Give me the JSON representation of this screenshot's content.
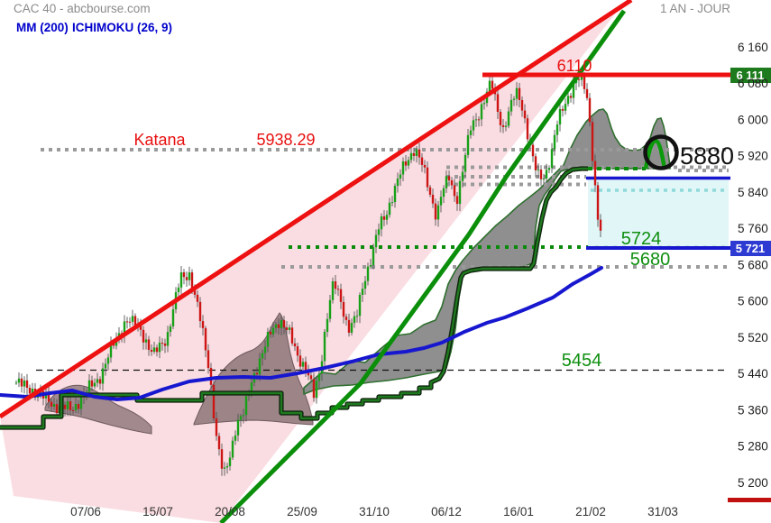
{
  "header": {
    "title": "CAC 40 - abcbourse.com",
    "timeframe": "1 AN - JOUR",
    "indicators": [
      {
        "label": "MM (200)"
      },
      {
        "label": "ICHIMOKU (26, 9)"
      }
    ]
  },
  "axis": {
    "y_ticks": [
      "6 160",
      "6 080",
      "6 000",
      "5 920",
      "5 840",
      "5 760",
      "5 680",
      "5 600",
      "5 520",
      "5 440",
      "5 360",
      "5 280",
      "5 200"
    ],
    "x_ticks": [
      "07/06",
      "15/07",
      "20/08",
      "25/09",
      "31/10",
      "06/12",
      "16/01",
      "21/02",
      "31/03"
    ]
  },
  "annotations": {
    "resistance_label": "6110",
    "resistance_badge": "6 111",
    "katana_name": "Katana",
    "katana_value": "5938.29",
    "circle_level": "5880",
    "level_5724": "5724",
    "level_5680": "5680",
    "level_5454": "5454",
    "support_badge": "5 721"
  },
  "colors": {
    "red": "#e81010",
    "green": "#0a8a0a",
    "blue": "#1717cf",
    "cloud_gray": "#8f8f8f",
    "cloud_brown": "#a1898d",
    "channel_pink": "#fadde2",
    "cyan_box": "#dcf5f6",
    "badge_green": "#1d7a1d",
    "badge_blue": "#2e3bd3",
    "candle_up": "#18a018",
    "candle_down": "#cc1515"
  },
  "chart_data": {
    "type": "candlestick",
    "symbol": "CAC 40",
    "timeframe": "1 year, daily",
    "overlays": [
      "MM (200)",
      "ICHIMOKU (26, 9)"
    ],
    "ylim": [
      5160,
      6200
    ],
    "y_tick_values": [
      6160,
      6080,
      6000,
      5920,
      5840,
      5760,
      5680,
      5600,
      5520,
      5440,
      5360,
      5280,
      5200
    ],
    "x_tick_dates": [
      "07/06",
      "15/07",
      "20/08",
      "25/09",
      "31/10",
      "06/12",
      "16/01",
      "21/02",
      "31/03"
    ],
    "key_levels": [
      {
        "value": 6110,
        "label": "6110",
        "style": "solid-red-thick",
        "role": "resistance"
      },
      {
        "value": 5938.29,
        "label": "Katana 5938.29",
        "style": "dotted-gray",
        "role": "katana-line"
      },
      {
        "value": 5900,
        "style": "dotted-gray"
      },
      {
        "value": 5874,
        "style": "dotted-gray"
      },
      {
        "value": 5858,
        "style": "dotted-gray"
      },
      {
        "value": 5880,
        "label": "5880",
        "style": "solid-blue",
        "role": "broken-support-top-of-zone"
      },
      {
        "value": 5724,
        "label": "5724",
        "style": "dotted-green"
      },
      {
        "value": 5721,
        "label": "5 721",
        "style": "solid-blue",
        "role": "last-price-support"
      },
      {
        "value": 5680,
        "label": "5680",
        "style": "dotted-gray"
      },
      {
        "value": 5454,
        "label": "5454",
        "style": "dashed-black"
      }
    ],
    "close_path": [
      [
        18,
        5420
      ],
      [
        40,
        5400
      ],
      [
        60,
        5370
      ],
      [
        80,
        5360
      ],
      [
        95,
        5400
      ],
      [
        110,
        5430
      ],
      [
        125,
        5500
      ],
      [
        140,
        5560
      ],
      [
        155,
        5540
      ],
      [
        170,
        5480
      ],
      [
        185,
        5520
      ],
      [
        200,
        5650
      ],
      [
        210,
        5660
      ],
      [
        220,
        5580
      ],
      [
        232,
        5450
      ],
      [
        240,
        5300
      ],
      [
        248,
        5210
      ],
      [
        255,
        5260
      ],
      [
        262,
        5330
      ],
      [
        270,
        5350
      ],
      [
        280,
        5430
      ],
      [
        290,
        5480
      ],
      [
        300,
        5530
      ],
      [
        310,
        5560
      ],
      [
        320,
        5530
      ],
      [
        330,
        5480
      ],
      [
        340,
        5450
      ],
      [
        348,
        5390
      ],
      [
        355,
        5450
      ],
      [
        362,
        5560
      ],
      [
        370,
        5640
      ],
      [
        378,
        5600
      ],
      [
        386,
        5540
      ],
      [
        395,
        5560
      ],
      [
        403,
        5640
      ],
      [
        412,
        5700
      ],
      [
        420,
        5760
      ],
      [
        428,
        5790
      ],
      [
        436,
        5840
      ],
      [
        444,
        5880
      ],
      [
        452,
        5910
      ],
      [
        460,
        5940
      ],
      [
        468,
        5900
      ],
      [
        476,
        5840
      ],
      [
        484,
        5790
      ],
      [
        490,
        5840
      ],
      [
        498,
        5870
      ],
      [
        506,
        5820
      ],
      [
        514,
        5900
      ],
      [
        522,
        5980
      ],
      [
        530,
        6010
      ],
      [
        538,
        6050
      ],
      [
        545,
        6080
      ],
      [
        552,
        6020
      ],
      [
        558,
        5980
      ],
      [
        565,
        6020
      ],
      [
        572,
        6060
      ],
      [
        578,
        6040
      ],
      [
        585,
        5970
      ],
      [
        592,
        5900
      ],
      [
        598,
        5870
      ],
      [
        605,
        5880
      ],
      [
        612,
        5930
      ],
      [
        618,
        5990
      ],
      [
        625,
        6030
      ],
      [
        632,
        6060
      ],
      [
        640,
        6090
      ],
      [
        647,
        6080
      ],
      [
        652,
        6040
      ],
      [
        656,
        5950
      ],
      [
        660,
        5850
      ],
      [
        663,
        5780
      ],
      [
        667,
        5745
      ]
    ]
  }
}
